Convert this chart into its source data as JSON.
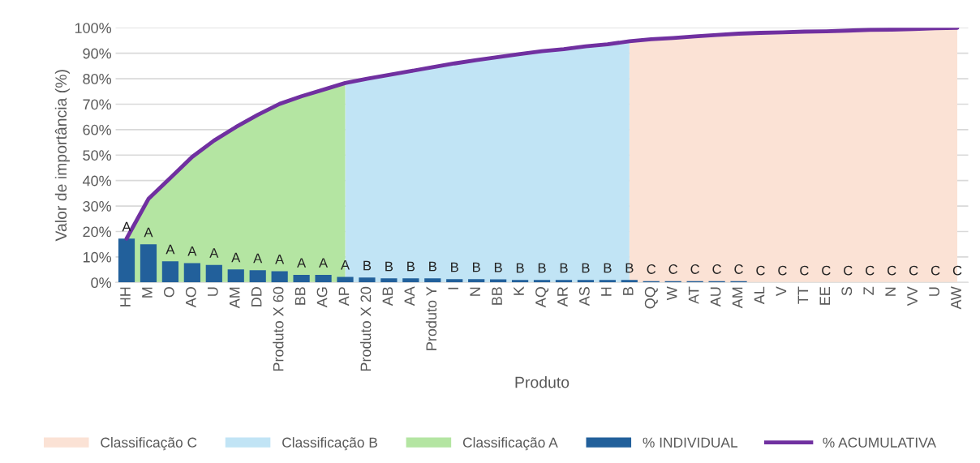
{
  "chart_data": {
    "type": "bar",
    "xlabel": "Produto",
    "ylabel": "Valor de importância (%)",
    "categories": [
      "HH",
      "M",
      "O",
      "AO",
      "U",
      "AM",
      "DD",
      "Produto X 60",
      "BB",
      "AG",
      "AP",
      "Produto X 20",
      "AB",
      "AA",
      "Produto Y",
      "I",
      "N",
      "BB",
      "K",
      "AQ",
      "AR",
      "AS",
      "H",
      "B",
      "QQ",
      "W",
      "AT",
      "AU",
      "AM",
      "AL",
      "V",
      "TT",
      "EE",
      "S",
      "Z",
      "N",
      "VV",
      "U",
      "AW"
    ],
    "series": [
      {
        "name": "Classificação C",
        "type": "area",
        "color": "#fbe2d5",
        "values": [
          null,
          null,
          null,
          null,
          null,
          null,
          null,
          null,
          null,
          null,
          null,
          null,
          null,
          null,
          null,
          null,
          null,
          null,
          null,
          null,
          null,
          null,
          null,
          94.7,
          95.5,
          96,
          96.6,
          97.2,
          97.7,
          98,
          98.2,
          98.5,
          98.6,
          98.9,
          99.2,
          99.3,
          99.5,
          99.8,
          100
        ]
      },
      {
        "name": "Classificação B",
        "type": "area",
        "color": "#c1e4f5",
        "values": [
          null,
          null,
          null,
          null,
          null,
          null,
          null,
          null,
          null,
          null,
          78.3,
          80,
          81.5,
          83,
          84.5,
          86,
          87.3,
          88.5,
          89.7,
          90.8,
          91.6,
          92.7,
          93.5,
          94.7,
          null,
          null,
          null,
          null,
          null,
          null,
          null,
          null,
          null,
          null,
          null,
          null,
          null,
          null,
          null
        ]
      },
      {
        "name": "Classificação A",
        "type": "area",
        "color": "#b4e5a2",
        "values": [
          17.2,
          32.8,
          41,
          49.3,
          55.7,
          61,
          65.8,
          70.1,
          73.1,
          75.7,
          78.3,
          null,
          null,
          null,
          null,
          null,
          null,
          null,
          null,
          null,
          null,
          null,
          null,
          null,
          null,
          null,
          null,
          null,
          null,
          null,
          null,
          null,
          null,
          null,
          null,
          null,
          null,
          null,
          null
        ]
      },
      {
        "name": "% INDIVIDUAL",
        "color": "#22609b",
        "values": [
          17.2,
          15,
          8.3,
          7.6,
          6.9,
          5.1,
          4.8,
          4.4,
          3,
          3,
          2.2,
          1.9,
          1.6,
          1.6,
          1.6,
          1.3,
          1.3,
          1.2,
          1,
          1,
          1,
          1,
          1,
          1,
          0.5,
          0.5,
          0.5,
          0.5,
          0.5,
          0,
          0,
          0,
          0,
          0,
          0,
          0,
          0,
          0,
          0
        ],
        "value_labels": [
          "A",
          "A",
          "A",
          "A",
          "A",
          "A",
          "A",
          "A",
          "A",
          "A",
          "A",
          "B",
          "B",
          "B",
          "B",
          "B",
          "B",
          "B",
          "B",
          "B",
          "B",
          "B",
          "B",
          "B",
          "C",
          "C",
          "C",
          "C",
          "C",
          "C",
          "C",
          "C",
          "C",
          "C",
          "C",
          "C",
          "C",
          "C",
          "C"
        ]
      },
      {
        "name": "% ACUMULATIVA",
        "type": "line",
        "color": "#7030a0",
        "values": [
          17.2,
          32.8,
          41,
          49.3,
          55.7,
          61,
          65.8,
          70.1,
          73.1,
          75.7,
          78.3,
          80,
          81.5,
          83,
          84.5,
          86,
          87.3,
          88.5,
          89.7,
          90.8,
          91.6,
          92.7,
          93.5,
          94.7,
          95.5,
          96,
          96.6,
          97.2,
          97.7,
          98,
          98.2,
          98.5,
          98.6,
          98.9,
          99.2,
          99.3,
          99.5,
          99.8,
          100
        ]
      }
    ],
    "ylim": [
      0,
      100
    ],
    "yticks": [
      {
        "value": 0,
        "label": "0%"
      },
      {
        "value": 10,
        "label": "10%"
      },
      {
        "value": 20,
        "label": "20%"
      },
      {
        "value": 30,
        "label": "30%"
      },
      {
        "value": 40,
        "label": "40%"
      },
      {
        "value": 50,
        "label": "50%"
      },
      {
        "value": 60,
        "label": "60%"
      },
      {
        "value": 70,
        "label": "70%"
      },
      {
        "value": 80,
        "label": "80%"
      },
      {
        "value": 90,
        "label": "90%"
      },
      {
        "value": 100,
        "label": "100%"
      }
    ],
    "grid": "y",
    "legend": "bottom",
    "marker": "none",
    "line_style": "solid"
  }
}
